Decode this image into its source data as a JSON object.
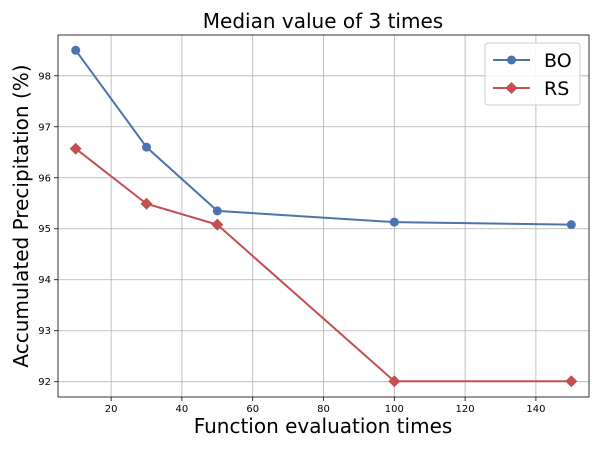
{
  "chart_data": {
    "type": "line",
    "title": "Median value of 3 times",
    "xlabel": "Function evaluation times",
    "ylabel": "Accumulated Precipitation (%)",
    "xlim": [
      5,
      155
    ],
    "ylim": [
      91.7,
      98.8
    ],
    "xticks": [
      20,
      40,
      60,
      80,
      100,
      120,
      140
    ],
    "yticks": [
      92,
      93,
      94,
      95,
      96,
      97,
      98
    ],
    "grid": true,
    "legend_position": "top-right",
    "series": [
      {
        "name": "BO",
        "color": "#4c72b0",
        "marker": "circle",
        "x": [
          10,
          30,
          50,
          100,
          150
        ],
        "y": [
          98.5,
          96.6,
          95.35,
          95.13,
          95.08
        ]
      },
      {
        "name": "RS",
        "color": "#c44e52",
        "marker": "diamond",
        "x": [
          10,
          30,
          50,
          100,
          150
        ],
        "y": [
          96.57,
          95.49,
          95.08,
          92.01,
          92.01
        ]
      }
    ]
  }
}
